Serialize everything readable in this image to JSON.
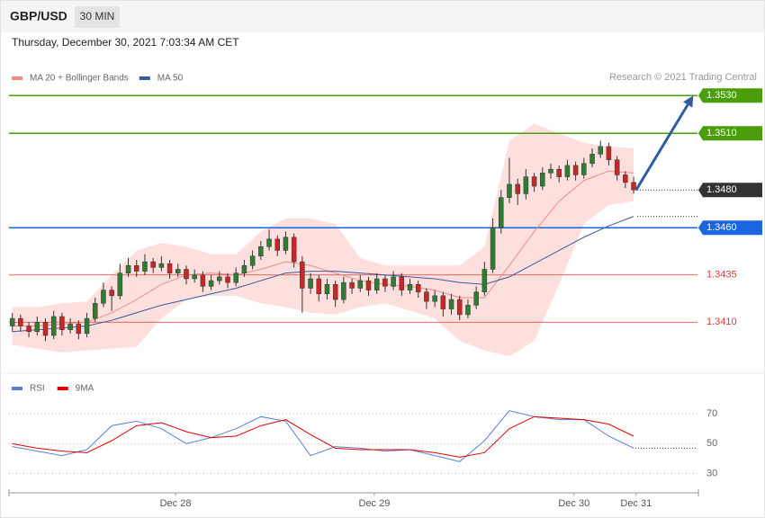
{
  "header": {
    "symbol": "GBP/USD",
    "interval": "30 MIN",
    "timestamp": "Thursday, December 30, 2021 7:03:34 AM CET"
  },
  "chart_data": [
    {
      "type": "candlestick",
      "source": "Research © 2021 Trading Central",
      "xlim": [
        -0.4,
        82.6
      ],
      "ylim": [
        1.3383,
        1.3552
      ],
      "up_color": "#2e7d32",
      "down_color": "#c62828",
      "candles": [
        [
          1.3408,
          1.3415,
          1.3405,
          1.3412
        ],
        [
          1.3412,
          1.3414,
          1.3405,
          1.3408
        ],
        [
          1.3408,
          1.341,
          1.3402,
          1.3405
        ],
        [
          1.3405,
          1.3413,
          1.3403,
          1.341
        ],
        [
          1.341,
          1.3412,
          1.34,
          1.3403
        ],
        [
          1.3403,
          1.3416,
          1.3401,
          1.3413
        ],
        [
          1.3413,
          1.3415,
          1.3403,
          1.3406
        ],
        [
          1.3406,
          1.3412,
          1.3404,
          1.3409
        ],
        [
          1.3409,
          1.3411,
          1.3401,
          1.3404
        ],
        [
          1.3404,
          1.3415,
          1.3402,
          1.3412
        ],
        [
          1.3412,
          1.3423,
          1.341,
          1.342
        ],
        [
          1.342,
          1.3431,
          1.3418,
          1.3427
        ],
        [
          1.3427,
          1.3429,
          1.3416,
          1.3424
        ],
        [
          1.3424,
          1.3441,
          1.3422,
          1.3436
        ],
        [
          1.3436,
          1.3444,
          1.3434,
          1.344
        ],
        [
          1.344,
          1.3443,
          1.3434,
          1.3437
        ],
        [
          1.3437,
          1.3446,
          1.3435,
          1.3442
        ],
        [
          1.3442,
          1.3444,
          1.3436,
          1.3439
        ],
        [
          1.3439,
          1.3445,
          1.3437,
          1.3441
        ],
        [
          1.3441,
          1.3443,
          1.3433,
          1.3436
        ],
        [
          1.3436,
          1.3441,
          1.3434,
          1.3438
        ],
        [
          1.3438,
          1.344,
          1.343,
          1.3433
        ],
        [
          1.3433,
          1.3438,
          1.3431,
          1.3435
        ],
        [
          1.3435,
          1.3437,
          1.3426,
          1.3429
        ],
        [
          1.3429,
          1.3435,
          1.3427,
          1.3432
        ],
        [
          1.3432,
          1.3437,
          1.343,
          1.3434
        ],
        [
          1.3434,
          1.3436,
          1.3428,
          1.3431
        ],
        [
          1.3431,
          1.3439,
          1.3429,
          1.3436
        ],
        [
          1.3436,
          1.3443,
          1.3434,
          1.344
        ],
        [
          1.344,
          1.3448,
          1.3438,
          1.3445
        ],
        [
          1.3445,
          1.3453,
          1.3443,
          1.345
        ],
        [
          1.345,
          1.3459,
          1.3448,
          1.3454
        ],
        [
          1.3454,
          1.3456,
          1.3445,
          1.3448
        ],
        [
          1.3448,
          1.3458,
          1.3446,
          1.3455
        ],
        [
          1.3455,
          1.3457,
          1.3439,
          1.3442
        ],
        [
          1.3442,
          1.3445,
          1.3415,
          1.3428
        ],
        [
          1.3428,
          1.3436,
          1.3425,
          1.3433
        ],
        [
          1.3433,
          1.3435,
          1.3421,
          1.3425
        ],
        [
          1.3425,
          1.3433,
          1.3422,
          1.343
        ],
        [
          1.343,
          1.3432,
          1.3418,
          1.3422
        ],
        [
          1.3422,
          1.3434,
          1.342,
          1.3431
        ],
        [
          1.3431,
          1.3433,
          1.3425,
          1.3428
        ],
        [
          1.3428,
          1.3435,
          1.3426,
          1.3432
        ],
        [
          1.3432,
          1.3434,
          1.3424,
          1.3427
        ],
        [
          1.3427,
          1.3436,
          1.3425,
          1.3433
        ],
        [
          1.3433,
          1.3435,
          1.3426,
          1.3429
        ],
        [
          1.3429,
          1.3437,
          1.3427,
          1.3434
        ],
        [
          1.3434,
          1.3436,
          1.3424,
          1.3427
        ],
        [
          1.3427,
          1.3433,
          1.3425,
          1.343
        ],
        [
          1.343,
          1.3432,
          1.3423,
          1.3426
        ],
        [
          1.3426,
          1.3428,
          1.3417,
          1.3421
        ],
        [
          1.3421,
          1.3427,
          1.3418,
          1.3424
        ],
        [
          1.3424,
          1.3426,
          1.3413,
          1.3417
        ],
        [
          1.3417,
          1.3425,
          1.3414,
          1.3422
        ],
        [
          1.3422,
          1.3424,
          1.3411,
          1.3414
        ],
        [
          1.3414,
          1.3422,
          1.3412,
          1.3419
        ],
        [
          1.3419,
          1.3429,
          1.3417,
          1.3426
        ],
        [
          1.3426,
          1.3442,
          1.3424,
          1.3438
        ],
        [
          1.3438,
          1.3465,
          1.3436,
          1.346
        ],
        [
          1.346,
          1.348,
          1.3457,
          1.3476
        ],
        [
          1.3476,
          1.3497,
          1.3473,
          1.3483
        ],
        [
          1.3483,
          1.3486,
          1.3472,
          1.3478
        ],
        [
          1.3478,
          1.3491,
          1.3475,
          1.3487
        ],
        [
          1.3487,
          1.3489,
          1.3479,
          1.3482
        ],
        [
          1.3482,
          1.3492,
          1.348,
          1.3489
        ],
        [
          1.3489,
          1.3494,
          1.3486,
          1.3491
        ],
        [
          1.3491,
          1.3493,
          1.3484,
          1.3487
        ],
        [
          1.3487,
          1.3496,
          1.3485,
          1.3493
        ],
        [
          1.3493,
          1.3495,
          1.3485,
          1.3488
        ],
        [
          1.3488,
          1.3497,
          1.3486,
          1.3494
        ],
        [
          1.3494,
          1.3502,
          1.3492,
          1.3499
        ],
        [
          1.3499,
          1.3506,
          1.3497,
          1.3503
        ],
        [
          1.3503,
          1.3505,
          1.3493,
          1.3496
        ],
        [
          1.3496,
          1.3498,
          1.3485,
          1.3488
        ],
        [
          1.3488,
          1.349,
          1.3481,
          1.3484
        ],
        [
          1.3484,
          1.3487,
          1.3478,
          1.348
        ]
      ],
      "x": [
        0,
        3,
        6,
        9,
        12,
        15,
        18,
        21,
        24,
        27,
        30,
        33,
        36,
        39,
        42,
        45,
        48,
        51,
        54,
        57,
        60,
        63,
        66,
        69,
        72,
        75
      ],
      "series": [
        {
          "name": "MA 20 + Bollinger Bands",
          "color": "#f28b82",
          "band_color": "#fde0de",
          "values": [
            1.3408,
            1.3408,
            1.3409,
            1.341,
            1.3415,
            1.3422,
            1.343,
            1.3435,
            1.3436,
            1.3435,
            1.3438,
            1.3442,
            1.344,
            1.3436,
            1.3432,
            1.343,
            1.3429,
            1.3427,
            1.3423,
            1.3423,
            1.344,
            1.3458,
            1.3474,
            1.3485,
            1.349,
            1.3489
          ],
          "upper": [
            1.3418,
            1.3418,
            1.342,
            1.3421,
            1.3435,
            1.3448,
            1.3452,
            1.345,
            1.3446,
            1.3446,
            1.3458,
            1.3465,
            1.3465,
            1.3462,
            1.3444,
            1.344,
            1.344,
            1.344,
            1.344,
            1.345,
            1.3506,
            1.3515,
            1.351,
            1.3505,
            1.3503,
            1.3502
          ],
          "lower": [
            1.3398,
            1.3396,
            1.3394,
            1.3395,
            1.3396,
            1.3397,
            1.3412,
            1.3422,
            1.3424,
            1.3424,
            1.342,
            1.3418,
            1.3415,
            1.3414,
            1.3418,
            1.342,
            1.3416,
            1.3412,
            1.34,
            1.3395,
            1.3392,
            1.34,
            1.343,
            1.3462,
            1.3472,
            1.3474
          ]
        },
        {
          "name": "MA 50",
          "color": "#3b5a9a",
          "values": [
            1.3405,
            1.3406,
            1.3407,
            1.3408,
            1.3411,
            1.3415,
            1.3419,
            1.3422,
            1.3425,
            1.3428,
            1.3432,
            1.3436,
            1.3437,
            1.3437,
            1.3436,
            1.3435,
            1.3434,
            1.3433,
            1.3431,
            1.343,
            1.3434,
            1.3441,
            1.3448,
            1.3455,
            1.3461,
            1.3466
          ]
        }
      ],
      "levels": [
        {
          "value": 1.353,
          "label": "1.3530",
          "color": "#4a9e0a",
          "style": "box",
          "line": "solid"
        },
        {
          "value": 1.351,
          "label": "1.3510",
          "color": "#4a9e0a",
          "style": "box",
          "line": "solid"
        },
        {
          "value": 1.348,
          "label": "1.3480",
          "color": "#333333",
          "style": "box",
          "line": "dotted"
        },
        {
          "value": 1.346,
          "label": "1.3460",
          "color": "#1a66e0",
          "style": "box",
          "line": "solid"
        },
        {
          "value": 1.3435,
          "label": "1.3435",
          "color": "#e53935",
          "style": "text",
          "line": "solid"
        },
        {
          "value": 1.341,
          "label": "1.3410",
          "color": "#e53935",
          "style": "text",
          "line": "solid"
        }
      ],
      "arrow": {
        "x": [
          75.3,
          82.2
        ],
        "y": [
          1.348,
          1.353
        ],
        "color": "#2f5d9e"
      }
    },
    {
      "type": "line",
      "ylim": [
        22,
        82
      ],
      "yticks": [
        30,
        50,
        70
      ],
      "xticks": [
        {
          "value": 19.7,
          "label": "Dec 28"
        },
        {
          "value": 43.7,
          "label": "Dec 29"
        },
        {
          "value": 67.8,
          "label": "Dec 30"
        },
        {
          "value": 75.3,
          "label": "Dec 31"
        }
      ],
      "x": [
        0,
        3,
        6,
        9,
        12,
        15,
        18,
        21,
        24,
        27,
        30,
        33,
        36,
        39,
        42,
        45,
        48,
        51,
        54,
        57,
        60,
        63,
        66,
        69,
        72,
        75
      ],
      "series": [
        {
          "name": "RSI",
          "color": "#5b7fd6",
          "values": [
            48,
            45,
            42,
            46,
            62,
            65,
            60,
            50,
            54,
            60,
            68,
            65,
            42,
            48,
            47,
            45,
            46,
            42,
            38,
            52,
            72,
            68,
            66,
            66,
            55,
            47
          ]
        },
        {
          "name": "9MA",
          "color": "#e00000",
          "values": [
            50,
            47,
            45,
            44,
            52,
            62,
            64,
            58,
            54,
            55,
            62,
            66,
            56,
            47,
            46,
            46,
            46,
            44,
            41,
            44,
            60,
            68,
            67,
            66,
            63,
            55
          ]
        }
      ]
    }
  ]
}
